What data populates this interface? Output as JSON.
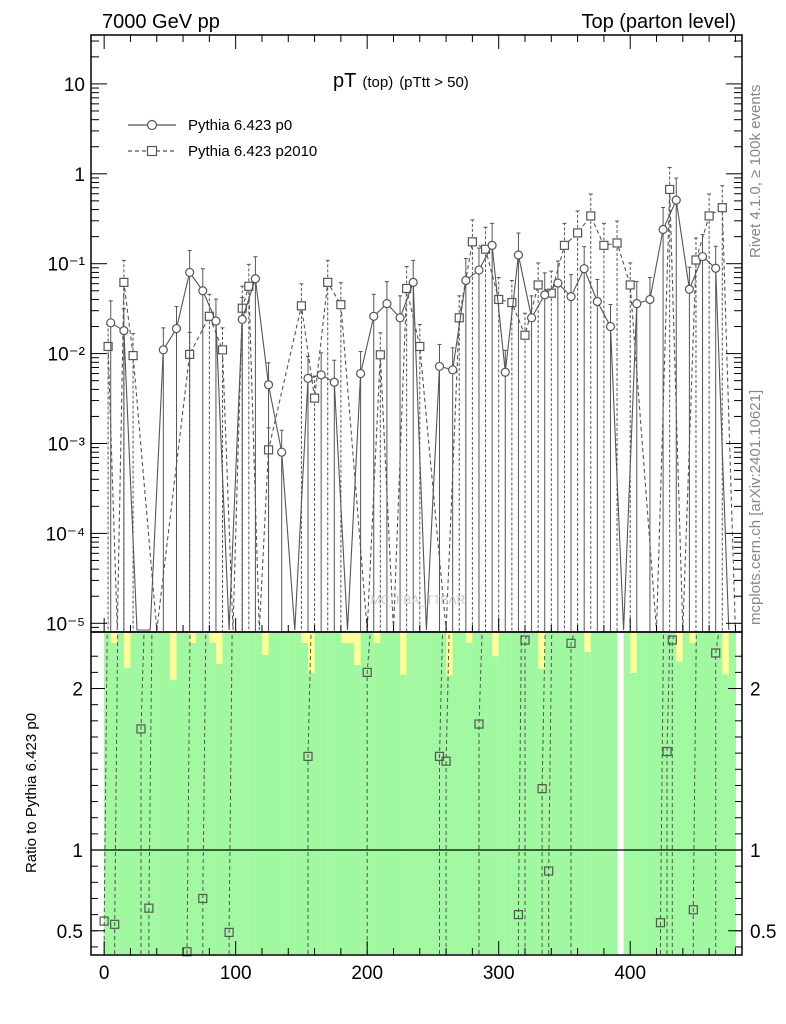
{
  "header": {
    "left": "7000 GeV pp",
    "right": "Top (parton level)"
  },
  "side_labels": {
    "rivet": "Rivet 4.1.0, ≥ 100k events",
    "mcplots": "mcplots.cern.ch [arXiv:2401.10621]"
  },
  "watermark": "MC_FBA_TTBAR",
  "colors": {
    "band_inner": "#a0f8a0",
    "band_outer": "#ffff99",
    "line_main": "#555555",
    "line_ref": "#000000"
  },
  "chart_data": [
    {
      "type": "line",
      "title": "pT",
      "title_sub": "(top)",
      "title_cut": "(pTtt > 50)",
      "xlabel": "",
      "ylabel": "",
      "xlim": [
        -10,
        485
      ],
      "ylim_log": [
        8e-06,
        35
      ],
      "yscale": "log",
      "y_tick_labels": [
        "10",
        "1",
        "10⁻¹",
        "10⁻²",
        "10⁻³",
        "10⁻⁴",
        "10⁻⁵"
      ],
      "y_tick_values": [
        10,
        1,
        0.1,
        0.01,
        0.001,
        0.0001,
        1e-05
      ],
      "legend": [
        {
          "name": "Pythia 6.423 p0",
          "marker": "circle",
          "style": "solid"
        },
        {
          "name": "Pythia 6.423 p2010",
          "marker": "square",
          "style": "dashed"
        }
      ],
      "series": [
        {
          "name": "Pythia 6.423 p0",
          "x": [
            5,
            15,
            25,
            35,
            45,
            55,
            65,
            75,
            85,
            95,
            105,
            115,
            125,
            135,
            145,
            155,
            165,
            175,
            185,
            195,
            205,
            215,
            225,
            235,
            245,
            255,
            265,
            275,
            285,
            295,
            305,
            315,
            325,
            335,
            345,
            355,
            365,
            375,
            385,
            395,
            405,
            415,
            425,
            435,
            445,
            455,
            465,
            475
          ],
          "values": [
            0.022,
            0.018,
            0,
            0,
            0.011,
            0.019,
            0.08,
            0.05,
            0.023,
            0,
            0.024,
            0.068,
            0.0045,
            0.0008,
            0,
            0.0053,
            0.0058,
            0.0048,
            0,
            0.006,
            0.026,
            0.036,
            0.025,
            0.062,
            0,
            0.0072,
            0.0066,
            0.065,
            0.085,
            0.16,
            0.0062,
            0.125,
            0.025,
            0.045,
            0.061,
            0.043,
            0.088,
            0.038,
            0.02,
            0,
            0.036,
            0.04,
            0.24,
            0.51,
            0.052,
            0.12,
            0.089,
            0
          ]
        },
        {
          "name": "Pythia 6.423 p2010",
          "x": [
            3,
            10,
            15,
            22,
            40,
            65,
            80,
            90,
            98,
            105,
            110,
            118,
            125,
            150,
            160,
            170,
            180,
            200,
            210,
            220,
            230,
            240,
            260,
            270,
            280,
            290,
            300,
            310,
            320,
            330,
            340,
            350,
            360,
            370,
            380,
            390,
            400,
            420,
            430,
            440,
            450,
            460,
            470,
            480
          ],
          "values": [
            0.012,
            0,
            0.062,
            0.0095,
            0,
            0.0098,
            0.026,
            0.011,
            0,
            0.032,
            0.056,
            0,
            0.00085,
            0.034,
            0.0032,
            0.062,
            0.035,
            0,
            0.0097,
            0,
            0.053,
            0.012,
            0,
            0.025,
            0.175,
            0.145,
            0.04,
            0.037,
            0.016,
            0.058,
            0.047,
            0.16,
            0.22,
            0.34,
            0.16,
            0.17,
            0.058,
            0,
            0.67,
            0,
            0.11,
            0.34,
            0.42,
            0
          ]
        }
      ]
    },
    {
      "type": "line",
      "title": "",
      "xlabel": "",
      "ylabel": "Ratio to Pythia 6.423 p0",
      "xlim": [
        -10,
        485
      ],
      "ylim": [
        0.35,
        2.35
      ],
      "x_tick_labels": [
        "0",
        "100",
        "200",
        "300",
        "400"
      ],
      "x_tick_values": [
        0,
        100,
        200,
        300,
        400
      ],
      "y_tick_labels": [
        "0.5",
        "1",
        "2"
      ],
      "y_tick_values": [
        0.5,
        1,
        2
      ],
      "reference_line": 1,
      "series": [
        {
          "name": "Pythia 6.423 p2010 / Pythia 6.423 p0",
          "x": [
            0,
            8,
            28,
            34,
            63,
            75,
            95,
            155,
            200,
            255,
            260,
            285,
            315,
            320,
            333,
            338,
            355,
            423,
            428,
            432,
            448,
            465
          ],
          "values": [
            0.56,
            0.54,
            1.75,
            0.64,
            0.37,
            0.7,
            0.49,
            1.58,
            2.1,
            1.58,
            1.55,
            1.78,
            0.6,
            2.3,
            1.38,
            0.87,
            2.28,
            0.55,
            1.61,
            2.3,
            0.63,
            2.22
          ]
        }
      ]
    }
  ]
}
